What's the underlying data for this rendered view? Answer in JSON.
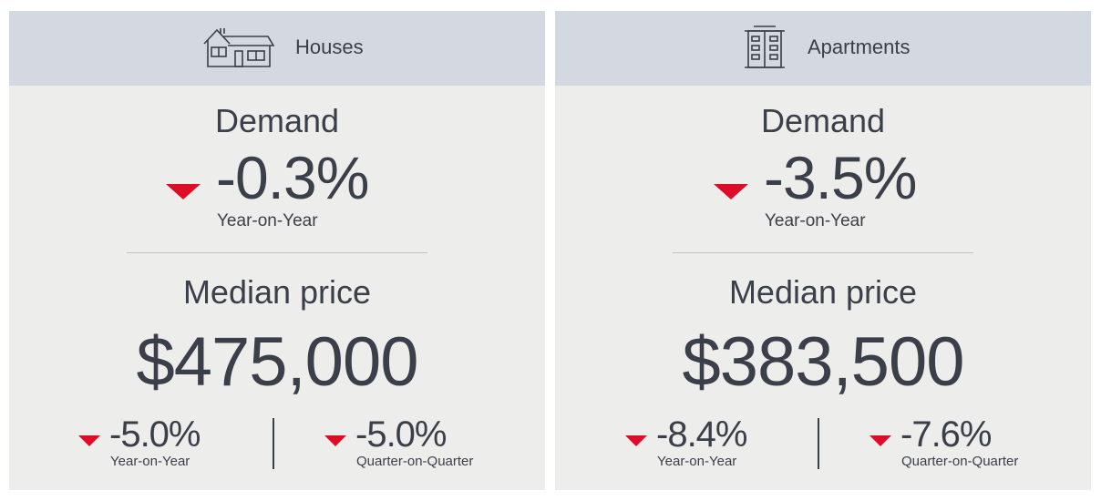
{
  "houses": {
    "header": {
      "label": "Houses",
      "icon": "house-icon"
    },
    "demand": {
      "title": "Demand",
      "value": "-0.3%",
      "period": "Year-on-Year",
      "direction": "down"
    },
    "median": {
      "title": "Median price",
      "price": "$475,000",
      "yoy": {
        "value": "-5.0%",
        "label": "Year-on-Year",
        "direction": "down"
      },
      "qoq": {
        "value": "-5.0%",
        "label": "Quarter-on-Quarter",
        "direction": "down"
      }
    }
  },
  "apartments": {
    "header": {
      "label": "Apartments",
      "icon": "apartment-building-icon"
    },
    "demand": {
      "title": "Demand",
      "value": "-3.5%",
      "period": "Year-on-Year",
      "direction": "down"
    },
    "median": {
      "title": "Median price",
      "price": "$383,500",
      "yoy": {
        "value": "-8.4%",
        "label": "Year-on-Year",
        "direction": "down"
      },
      "qoq": {
        "value": "-7.6%",
        "label": "Quarter-on-Quarter",
        "direction": "down"
      }
    }
  },
  "colors": {
    "header_bg": "#d4d8e0",
    "panel_bg": "#ededeb",
    "down_arrow": "#dd0c27",
    "text": "#3a3f4a"
  }
}
